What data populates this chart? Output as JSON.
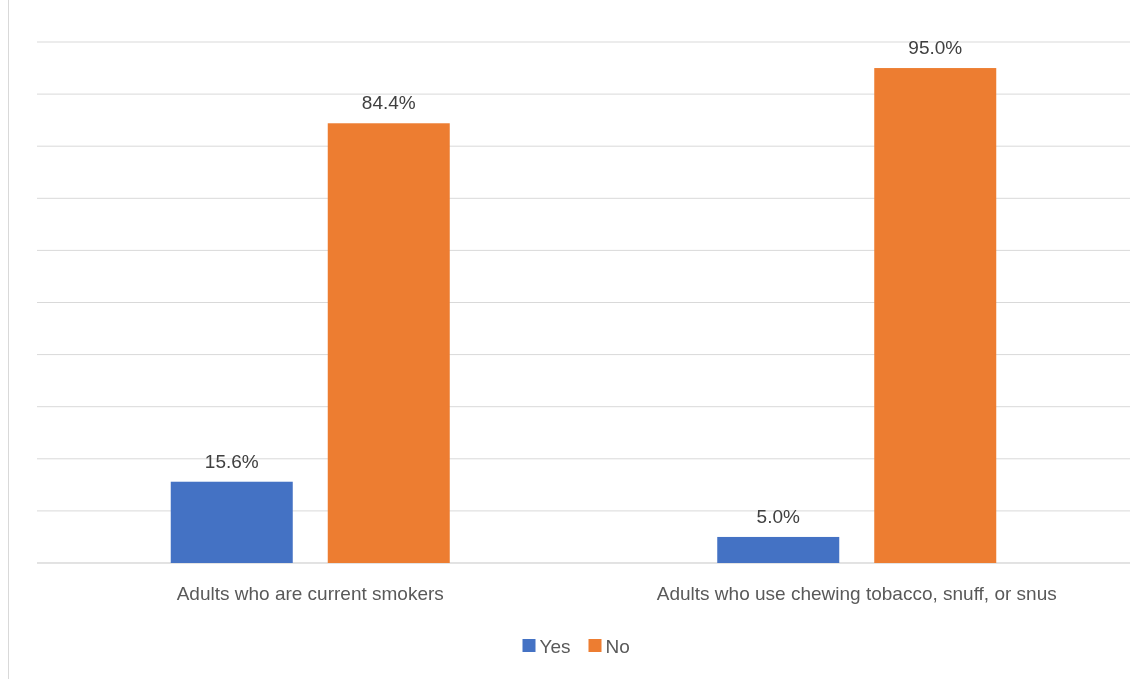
{
  "chart_data": {
    "type": "bar",
    "categories": [
      "Adults who are current smokers",
      "Adults who use chewing tobacco, snuff, or snus"
    ],
    "series": [
      {
        "name": "Yes",
        "color": "#4472c4",
        "values": [
          15.6,
          5.0
        ],
        "value_labels": [
          "15.6%",
          "5.0%"
        ]
      },
      {
        "name": "No",
        "color": "#ed7d31",
        "values": [
          84.4,
          95.0
        ],
        "value_labels": [
          "84.4%",
          "95.0%"
        ]
      }
    ],
    "ylim": [
      0,
      100
    ],
    "yticks": [
      {
        "value": 0,
        "label": null
      },
      {
        "value": 10,
        "label": null
      },
      {
        "value": 20,
        "label": null
      },
      {
        "value": 30,
        "label": null
      },
      {
        "value": 40,
        "label": null
      },
      {
        "value": 50,
        "label": null
      },
      {
        "value": 60,
        "label": null
      },
      {
        "value": 70,
        "label": null
      },
      {
        "value": 80,
        "label": null
      },
      {
        "value": 90,
        "label": null
      },
      {
        "value": 100,
        "label": null
      }
    ],
    "tick_labels": "x",
    "grid": "y",
    "legend": "bottom"
  }
}
